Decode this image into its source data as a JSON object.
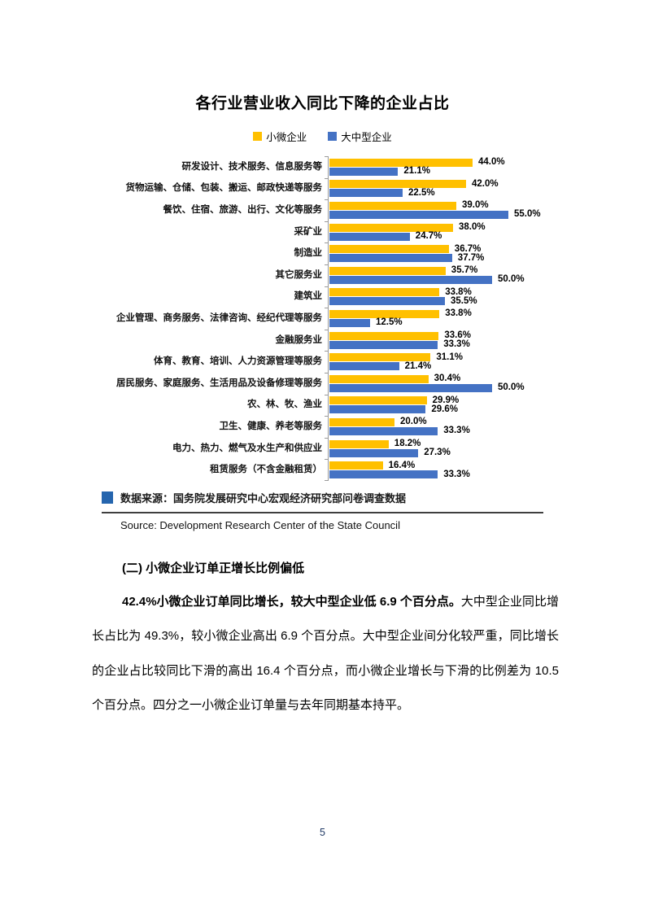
{
  "chart": {
    "title": "各行业营业收入同比下降的企业占比",
    "source_cn": "数据来源：国务院发展研究中心宏观经济研究部问卷调查数据",
    "source_en": "Source: Development Research Center of the State Council"
  },
  "chart_data": {
    "type": "bar",
    "orientation": "horizontal",
    "title": "各行业营业收入同比下降的企业占比",
    "value_suffix": "%",
    "xlim": [
      0,
      60
    ],
    "grid": false,
    "legend_position": "top",
    "categories": [
      "研发设计、技术服务、信息服务等",
      "货物运输、仓储、包装、搬运、邮政快递等服务",
      "餐饮、住宿、旅游、出行、文化等服务",
      "采矿业",
      "制造业",
      "其它服务业",
      "建筑业",
      "企业管理、商务服务、法律咨询、经纪代理等服务",
      "金融服务业",
      "体育、教育、培训、人力资源管理等服务",
      "居民服务、家庭服务、生活用品及设备修理等服务",
      "农、林、牧、渔业",
      "卫生、健康、养老等服务",
      "电力、热力、燃气及水生产和供应业",
      "租赁服务（不含金融租赁）"
    ],
    "series": [
      {
        "name": "小微企业",
        "color": "#FFC000",
        "values": [
          44.0,
          42.0,
          39.0,
          38.0,
          36.7,
          35.7,
          33.8,
          33.8,
          33.6,
          31.1,
          30.4,
          29.9,
          20.0,
          18.2,
          16.4
        ]
      },
      {
        "name": "大中型企业",
        "color": "#4472C4",
        "values": [
          21.1,
          22.5,
          55.0,
          24.7,
          37.7,
          50.0,
          35.5,
          12.5,
          33.3,
          21.4,
          50.0,
          29.6,
          33.3,
          27.3,
          33.3
        ]
      }
    ]
  },
  "colors": {
    "source_swatch": "#2565AE",
    "axis": "#9a9a9a"
  },
  "body": {
    "heading": "(二) 小微企业订单正增长比例偏低",
    "para_lines": [
      {
        "bold": "42.4%小微企业订单同比增长，较大中型企业低 6.9 个百分点。",
        "rest": "大中型企业同比增"
      },
      {
        "bold": "",
        "rest": "长占比为 49.3%，较小微企业高出 6.9 个百分点。大中型企业间分化较严重，同比增长"
      },
      {
        "bold": "",
        "rest": "的企业占比较同比下滑的高出 16.4 个百分点，而小微企业增长与下滑的比例差为 10.5"
      },
      {
        "bold": "",
        "rest": "个百分点。四分之一小微企业订单量与去年同期基本持平。"
      }
    ]
  },
  "footer": {
    "page_number": "5"
  }
}
